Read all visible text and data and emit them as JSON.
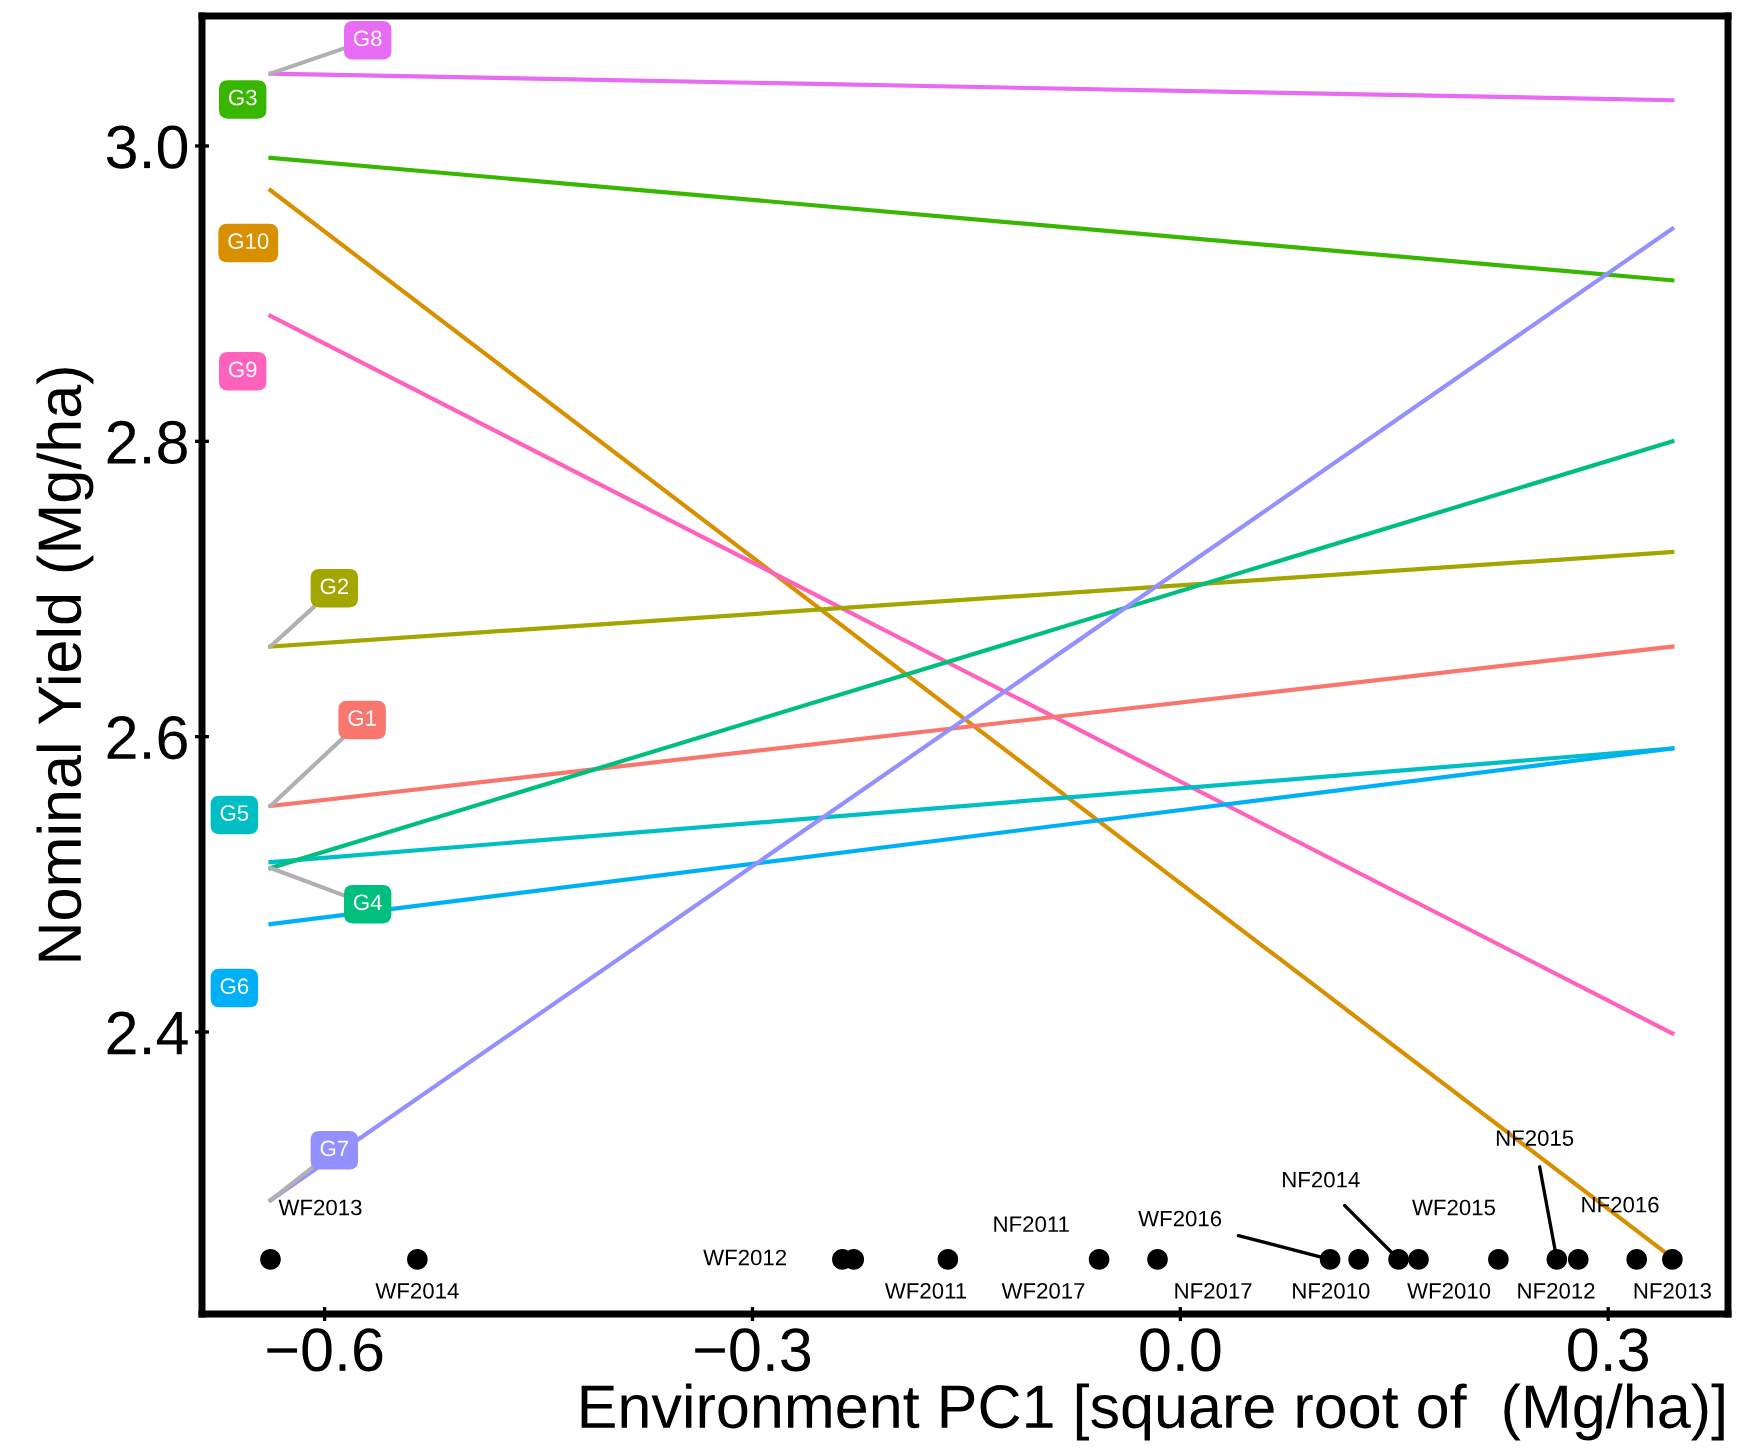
{
  "chart_data": {
    "type": "line",
    "xlabel": "Environment PC1 [square root of  (Mg/ha)]",
    "ylabel": "Nominal Yield (Mg/ha)",
    "xlim": [
      -0.686,
      0.384
    ],
    "ylim": [
      2.209,
      3.088
    ],
    "xticks": [
      {
        "value": -0.6,
        "label": "−0.6"
      },
      {
        "value": -0.3,
        "label": "−0.3"
      },
      {
        "value": 0.0,
        "label": "0.0"
      },
      {
        "value": 0.3,
        "label": "0.3"
      }
    ],
    "yticks": [
      {
        "value": 2.4,
        "label": "2.4"
      },
      {
        "value": 2.6,
        "label": "2.6"
      },
      {
        "value": 2.8,
        "label": "2.8"
      },
      {
        "value": 3.0,
        "label": "3.0"
      }
    ],
    "grid": false,
    "legend": false,
    "marker": "none",
    "line_style": "solid",
    "series": [
      {
        "name": "G8",
        "color": "#e76bf3",
        "x": [
          -0.638,
          0.345
        ],
        "values": [
          3.049,
          3.031
        ]
      },
      {
        "name": "G3",
        "color": "#39b600",
        "x": [
          -0.638,
          0.345
        ],
        "values": [
          2.992,
          2.909
        ]
      },
      {
        "name": "G10",
        "color": "#d89000",
        "x": [
          -0.638,
          0.345
        ],
        "values": [
          2.97,
          2.247
        ]
      },
      {
        "name": "G9",
        "color": "#ff62bc",
        "x": [
          -0.638,
          0.345
        ],
        "values": [
          2.885,
          2.399
        ]
      },
      {
        "name": "G2",
        "color": "#a3a500",
        "x": [
          -0.638,
          0.345
        ],
        "values": [
          2.661,
          2.725
        ]
      },
      {
        "name": "G1",
        "color": "#f8766d",
        "x": [
          -0.638,
          0.345
        ],
        "values": [
          2.553,
          2.661
        ]
      },
      {
        "name": "G5",
        "color": "#00bfc4",
        "x": [
          -0.638,
          0.345
        ],
        "values": [
          2.515,
          2.592
        ]
      },
      {
        "name": "G4",
        "color": "#00bf7d",
        "x": [
          -0.638,
          0.345
        ],
        "values": [
          2.511,
          2.8
        ]
      },
      {
        "name": "G6",
        "color": "#00b0f6",
        "x": [
          -0.638,
          0.345
        ],
        "values": [
          2.473,
          2.592
        ]
      },
      {
        "name": "G7",
        "color": "#9590ff",
        "x": [
          -0.638,
          0.345
        ],
        "values": [
          2.286,
          2.944
        ]
      },
      {
        "type": "scatter",
        "marker": "circle",
        "color": "#000000",
        "x": [
          -0.638,
          -0.535,
          -0.237,
          -0.229,
          -0.163,
          -0.057,
          -0.016,
          0.105,
          0.125,
          0.153,
          0.167,
          0.223,
          0.264,
          0.279,
          0.32,
          0.345
        ],
        "values": [
          2.246,
          2.246,
          2.246,
          2.246,
          2.246,
          2.246,
          2.246,
          2.246,
          2.246,
          2.246,
          2.246,
          2.246,
          2.246,
          2.246,
          2.246,
          2.246
        ]
      }
    ],
    "annotations": [
      {
        "text": "WF2013",
        "x": -0.638,
        "y": 2.246
      },
      {
        "text": "WF2014",
        "x": -0.535,
        "y": 2.246
      },
      {
        "text": "WF2012",
        "x": -0.237,
        "y": 2.246
      },
      {
        "text": "WF2011",
        "x": -0.229,
        "y": 2.246
      },
      {
        "text": "NF2011",
        "x": -0.163,
        "y": 2.246
      },
      {
        "text": "WF2017",
        "x": -0.057,
        "y": 2.246
      },
      {
        "text": "NF2017",
        "x": -0.016,
        "y": 2.246
      },
      {
        "text": "WF2016",
        "x": 0.105,
        "y": 2.246
      },
      {
        "text": "NF2010",
        "x": 0.125,
        "y": 2.246
      },
      {
        "text": "NF2014",
        "x": 0.153,
        "y": 2.246
      },
      {
        "text": "WF2010",
        "x": 0.167,
        "y": 2.246
      },
      {
        "text": "WF2015",
        "x": 0.223,
        "y": 2.246
      },
      {
        "text": "NF2015",
        "x": 0.264,
        "y": 2.246
      },
      {
        "text": "NF2012",
        "x": 0.279,
        "y": 2.246
      },
      {
        "text": "NF2016",
        "x": 0.32,
        "y": 2.246
      },
      {
        "text": "NF2013",
        "x": 0.345,
        "y": 2.246
      }
    ]
  }
}
